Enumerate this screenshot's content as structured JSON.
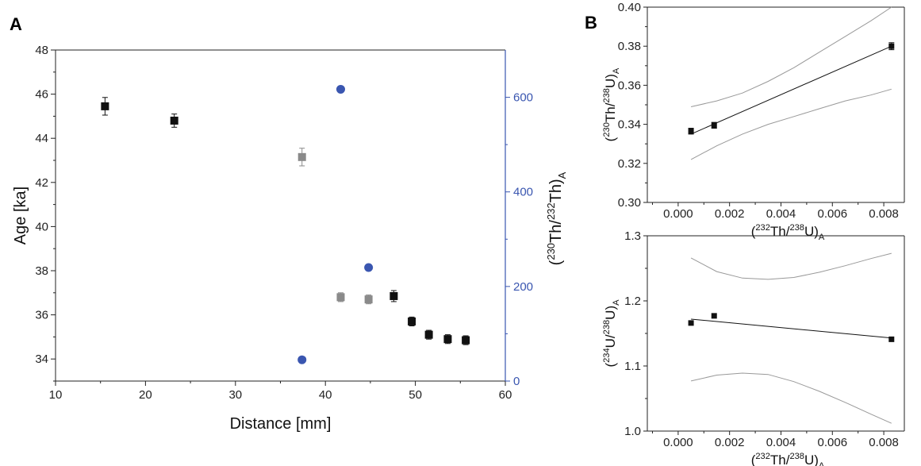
{
  "panels": {
    "a_letter": "A",
    "b_letter": "B"
  },
  "colors": {
    "black_series": "#111111",
    "gray_series": "#8a8a8a",
    "blue_series": "#3a56b0",
    "band": "#999999",
    "right_axis": "#3a56b0"
  },
  "chart_data": [
    {
      "id": "A",
      "type": "scatter",
      "xlabel": "Distance [mm]",
      "ylabel": "Age [ka]",
      "y2label": {
        "open": "(",
        "sup1": "230",
        "mid": "Th/",
        "sup2": "232",
        "end": "Th)",
        "sub": "A"
      },
      "xlim": [
        10,
        60
      ],
      "ylim": [
        33,
        48
      ],
      "y2lim": [
        0,
        700
      ],
      "x_ticks": [
        10,
        20,
        30,
        40,
        50,
        60
      ],
      "y_ticks": [
        34,
        36,
        38,
        40,
        42,
        44,
        46,
        48
      ],
      "y2_ticks": [
        0,
        200,
        400,
        600
      ],
      "grid": false,
      "series": [
        {
          "marker": "square",
          "color": "#111111",
          "axis": "left",
          "points": [
            {
              "x": 15.5,
              "y": 45.45,
              "err": 0.4
            },
            {
              "x": 23.2,
              "y": 44.8,
              "err": 0.3
            },
            {
              "x": 47.6,
              "y": 36.85,
              "err": 0.25
            },
            {
              "x": 49.6,
              "y": 35.7,
              "err": 0.2
            },
            {
              "x": 51.5,
              "y": 35.1,
              "err": 0.2
            },
            {
              "x": 53.6,
              "y": 34.9,
              "err": 0.2
            },
            {
              "x": 55.6,
              "y": 34.85,
              "err": 0.2
            }
          ]
        },
        {
          "marker": "square",
          "color": "#8a8a8a",
          "axis": "left",
          "points": [
            {
              "x": 37.4,
              "y": 43.15,
              "err": 0.4
            },
            {
              "x": 41.7,
              "y": 36.8,
              "err": 0.2
            },
            {
              "x": 44.8,
              "y": 36.7,
              "err": 0.2
            }
          ]
        },
        {
          "marker": "circle",
          "color": "#3a56b0",
          "axis": "right",
          "points": [
            {
              "x": 37.4,
              "y": 45
            },
            {
              "x": 41.7,
              "y": 617
            },
            {
              "x": 44.8,
              "y": 240
            }
          ]
        }
      ]
    },
    {
      "id": "B-top",
      "type": "scatter",
      "xlabel": {
        "open": "(",
        "sup1": "232",
        "mid": "Th/",
        "sup2": "238",
        "end": "U)",
        "sub": "A"
      },
      "ylabel": {
        "open": "(",
        "sup1": "230",
        "mid": "Th/",
        "sup2": "238",
        "end": "U)",
        "sub": "A"
      },
      "xlim": [
        -0.0012,
        0.0088
      ],
      "ylim": [
        0.3,
        0.4
      ],
      "x_ticks": [
        0.0,
        0.002,
        0.004,
        0.006,
        0.008
      ],
      "x_tick_labels": [
        "0.000",
        "0.002",
        "0.004",
        "0.006",
        "0.008"
      ],
      "y_ticks": [
        0.3,
        0.32,
        0.34,
        0.36,
        0.38,
        0.4
      ],
      "y_tick_labels": [
        "0.30",
        "0.32",
        "0.34",
        "0.36",
        "0.38",
        "0.40"
      ],
      "grid": false,
      "points": [
        {
          "x": 0.0005,
          "y": 0.3365,
          "err": 0.0015
        },
        {
          "x": 0.0014,
          "y": 0.3395,
          "err": 0.0015
        },
        {
          "x": 0.0083,
          "y": 0.38,
          "err": 0.0018
        }
      ],
      "fit_line": {
        "x": [
          0.0005,
          0.0083
        ],
        "y": [
          0.335,
          0.38
        ]
      },
      "band_upper": {
        "x": [
          0.0005,
          0.0015,
          0.0025,
          0.0035,
          0.0045,
          0.0055,
          0.0065,
          0.0075,
          0.0083
        ],
        "y": [
          0.349,
          0.352,
          0.356,
          0.362,
          0.369,
          0.377,
          0.385,
          0.393,
          0.4
        ]
      },
      "band_lower": {
        "x": [
          0.0005,
          0.0015,
          0.0025,
          0.0035,
          0.0045,
          0.0055,
          0.0065,
          0.0075,
          0.0083
        ],
        "y": [
          0.322,
          0.329,
          0.335,
          0.34,
          0.344,
          0.348,
          0.352,
          0.355,
          0.358
        ]
      }
    },
    {
      "id": "B-bottom",
      "type": "scatter",
      "xlabel": {
        "open": "(",
        "sup1": "232",
        "mid": "Th/",
        "sup2": "238",
        "end": "U)",
        "sub": "A"
      },
      "ylabel": {
        "open": "(",
        "sup1": "234",
        "mid": "U/",
        "sup2": "238",
        "end": "U)",
        "sub": "A"
      },
      "xlim": [
        -0.0012,
        0.0088
      ],
      "ylim": [
        1.0,
        1.3
      ],
      "x_ticks": [
        0.0,
        0.002,
        0.004,
        0.006,
        0.008
      ],
      "x_tick_labels": [
        "0.000",
        "0.002",
        "0.004",
        "0.006",
        "0.008"
      ],
      "y_ticks": [
        1.0,
        1.1,
        1.2,
        1.3
      ],
      "y_tick_labels": [
        "1.0",
        "1.1",
        "1.2",
        "1.3"
      ],
      "grid": false,
      "points": [
        {
          "x": 0.0005,
          "y": 1.166
        },
        {
          "x": 0.0014,
          "y": 1.177
        },
        {
          "x": 0.0083,
          "y": 1.141
        }
      ],
      "fit_line": {
        "x": [
          0.0005,
          0.0083
        ],
        "y": [
          1.172,
          1.143
        ]
      },
      "band_upper": {
        "x": [
          0.0005,
          0.0015,
          0.0025,
          0.0035,
          0.0045,
          0.0055,
          0.0065,
          0.0075,
          0.0083
        ],
        "y": [
          1.266,
          1.245,
          1.235,
          1.233,
          1.236,
          1.244,
          1.254,
          1.265,
          1.273
        ]
      },
      "band_lower": {
        "x": [
          0.0005,
          0.0015,
          0.0025,
          0.0035,
          0.0045,
          0.0055,
          0.0065,
          0.0075,
          0.0083
        ],
        "y": [
          1.077,
          1.086,
          1.089,
          1.087,
          1.076,
          1.061,
          1.044,
          1.026,
          1.012
        ]
      }
    }
  ]
}
